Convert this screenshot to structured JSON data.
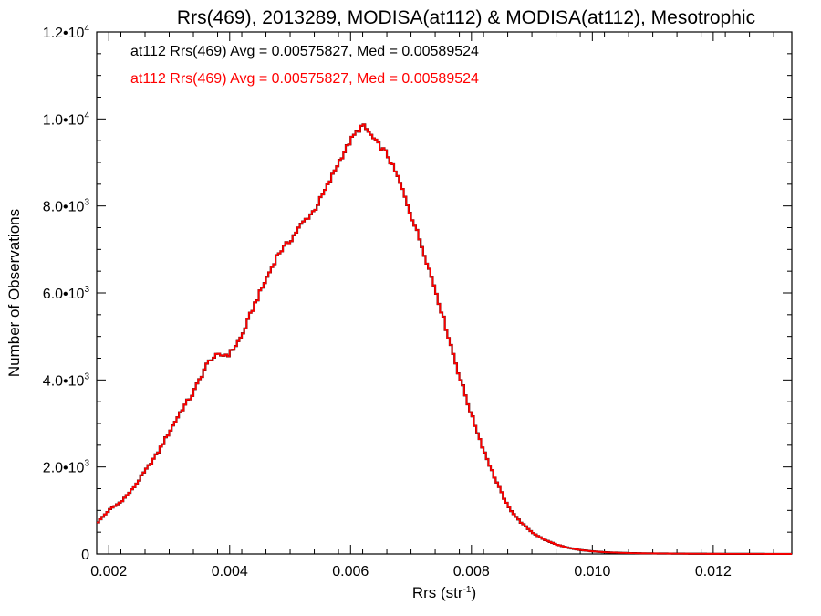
{
  "chart_data": {
    "type": "line",
    "title": "Rrs(469), 2013289, MODISA(at112) & MODISA(at112), Mesotrophic",
    "xlabel": "Rrs (str",
    "xlabel_sup": "-1",
    "xlabel_end": ")",
    "ylabel": "Number of Observations",
    "xlim": [
      0.0018,
      0.0133
    ],
    "ylim": [
      0,
      12000
    ],
    "grid": false,
    "legend_position": "top-left",
    "x_ticks": [
      {
        "value": 0.002,
        "label": "0.002"
      },
      {
        "value": 0.004,
        "label": "0.004"
      },
      {
        "value": 0.006,
        "label": "0.006"
      },
      {
        "value": 0.008,
        "label": "0.008"
      },
      {
        "value": 0.01,
        "label": "0.010"
      },
      {
        "value": 0.012,
        "label": "0.012"
      }
    ],
    "y_ticks": [
      {
        "value": 0,
        "mant": "0",
        "exp": ""
      },
      {
        "value": 2000,
        "mant": "2.0•10",
        "exp": "3"
      },
      {
        "value": 4000,
        "mant": "4.0•10",
        "exp": "3"
      },
      {
        "value": 6000,
        "mant": "6.0•10",
        "exp": "3"
      },
      {
        "value": 8000,
        "mant": "8.0•10",
        "exp": "3"
      },
      {
        "value": 10000,
        "mant": "1.0•10",
        "exp": "4"
      },
      {
        "value": 12000,
        "mant": "1.2•10",
        "exp": "4"
      }
    ],
    "series": [
      {
        "name": "at112 Rrs(469) Avg = 0.00575827, Med = 0.00589524",
        "color": "#000000",
        "x": [
          0.0018,
          0.002,
          0.0022,
          0.0024,
          0.0026,
          0.0028,
          0.003,
          0.0032,
          0.0034,
          0.0036,
          0.0037,
          0.0038,
          0.004,
          0.0042,
          0.0044,
          0.0046,
          0.0048,
          0.005,
          0.0052,
          0.0054,
          0.0056,
          0.0058,
          0.006,
          0.0061,
          0.0062,
          0.0063,
          0.0064,
          0.0066,
          0.0068,
          0.007,
          0.0072,
          0.0074,
          0.0076,
          0.0078,
          0.008,
          0.0082,
          0.0084,
          0.0086,
          0.0088,
          0.009,
          0.0092,
          0.0094,
          0.0096,
          0.0098,
          0.01,
          0.0102,
          0.0104,
          0.0106,
          0.0108,
          0.011,
          0.0112,
          0.0114,
          0.0116,
          0.0118,
          0.012,
          0.0122,
          0.0124,
          0.0126,
          0.0128,
          0.013,
          0.0133
        ],
        "y": [
          700,
          1000,
          1200,
          1500,
          1900,
          2300,
          2800,
          3300,
          3700,
          4300,
          4500,
          4550,
          4600,
          5000,
          5700,
          6300,
          6900,
          7200,
          7600,
          7900,
          8400,
          9000,
          9500,
          9700,
          9850,
          9700,
          9500,
          9200,
          8600,
          7800,
          7000,
          6100,
          5100,
          4100,
          3200,
          2400,
          1700,
          1100,
          750,
          500,
          330,
          220,
          140,
          90,
          60,
          40,
          30,
          20,
          15,
          12,
          10,
          8,
          6,
          5,
          4,
          3,
          3,
          2,
          2,
          1,
          1
        ]
      },
      {
        "name": "at112 Rrs(469) Avg = 0.00575827, Med = 0.00589524",
        "color": "#ff0000",
        "x": [
          0.0018,
          0.002,
          0.0022,
          0.0024,
          0.0026,
          0.0028,
          0.003,
          0.0032,
          0.0034,
          0.0036,
          0.0037,
          0.0038,
          0.004,
          0.0042,
          0.0044,
          0.0046,
          0.0048,
          0.005,
          0.0052,
          0.0054,
          0.0056,
          0.0058,
          0.006,
          0.0061,
          0.0062,
          0.0063,
          0.0064,
          0.0066,
          0.0068,
          0.007,
          0.0072,
          0.0074,
          0.0076,
          0.0078,
          0.008,
          0.0082,
          0.0084,
          0.0086,
          0.0088,
          0.009,
          0.0092,
          0.0094,
          0.0096,
          0.0098,
          0.01,
          0.0102,
          0.0104,
          0.0106,
          0.0108,
          0.011,
          0.0112,
          0.0114,
          0.0116,
          0.0118,
          0.012,
          0.0122,
          0.0124,
          0.0126,
          0.0128,
          0.013,
          0.0133
        ],
        "y": [
          700,
          1000,
          1200,
          1500,
          1900,
          2300,
          2800,
          3300,
          3700,
          4300,
          4500,
          4550,
          4600,
          5000,
          5700,
          6300,
          6900,
          7200,
          7600,
          7900,
          8400,
          9000,
          9500,
          9700,
          9850,
          9700,
          9500,
          9200,
          8600,
          7800,
          7000,
          6100,
          5100,
          4100,
          3200,
          2400,
          1700,
          1100,
          750,
          500,
          330,
          220,
          140,
          90,
          60,
          40,
          30,
          20,
          15,
          12,
          10,
          8,
          6,
          5,
          4,
          3,
          3,
          2,
          2,
          1,
          1
        ]
      }
    ]
  }
}
